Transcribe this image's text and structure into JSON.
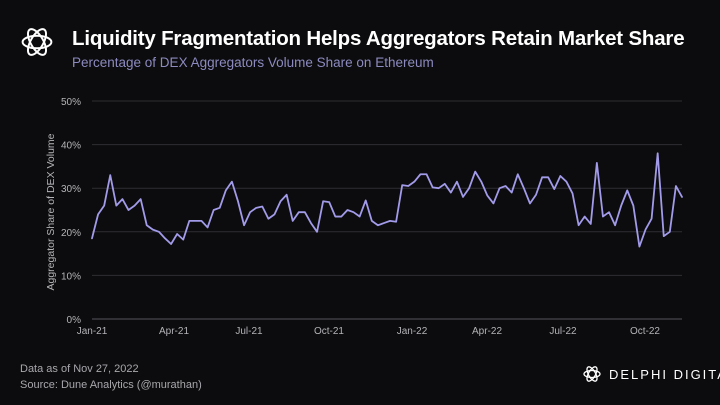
{
  "header": {
    "title": "Liquidity Fragmentation Helps Aggregators Retain Market Share",
    "subtitle": "Percentage of DEX Aggregators Volume Share on Ethereum"
  },
  "footer": {
    "note": "Data as of Nov 27, 2022",
    "source": "Source: Dune Analytics (@murathan)",
    "brand": "DELPHI DIGITAL"
  },
  "colors": {
    "line": "#a29bea",
    "grid": "#2e2e33",
    "axis_text": "#b4b4b8",
    "background": "#0c0c0e"
  },
  "chart_data": {
    "type": "line",
    "ylabel": "Aggregator Share of DEX Volume",
    "xlabel": "",
    "y_ticks": [
      "0%",
      "10%",
      "20%",
      "30%",
      "40%",
      "50%"
    ],
    "ylim": [
      0,
      50
    ],
    "x_ticks": [
      "Jan-21",
      "Apr-21",
      "Jul-21",
      "Oct-21",
      "Jan-22",
      "Apr-22",
      "Jul-22",
      "Oct-22"
    ],
    "grid": true,
    "series": [
      {
        "values": [
          18.5,
          24,
          26,
          33,
          26,
          27.5,
          25,
          26,
          27.5,
          21.5,
          20.5,
          20,
          18.5,
          17.2,
          19.5,
          18.2,
          22.5,
          22.5,
          22.5,
          21,
          25,
          25.5,
          29.5,
          31.5,
          27,
          21.5,
          24.5,
          25.5,
          25.8,
          23,
          24,
          27,
          28.5,
          22.5,
          24.5,
          24.5,
          22,
          20,
          27,
          26.8,
          23.5,
          23.5,
          25,
          24.5,
          23.5,
          27.2,
          22.5,
          21.5,
          22,
          22.5,
          22.3,
          30.7,
          30.5,
          31.5,
          33.2,
          33.2,
          30.2,
          30,
          31,
          29,
          31.5,
          28,
          30,
          33.8,
          31.5,
          28.3,
          26.5,
          30,
          30.5,
          29,
          33.2,
          30,
          26.5,
          28.5,
          32.5,
          32.5,
          29.8,
          32.8,
          31.5,
          28.8,
          21.5,
          23.5,
          21.8,
          35.8,
          23.5,
          24.5,
          21.5,
          26,
          29.5,
          26,
          16.6,
          20.5,
          23,
          38,
          19,
          20,
          30.5,
          28
        ]
      }
    ]
  }
}
